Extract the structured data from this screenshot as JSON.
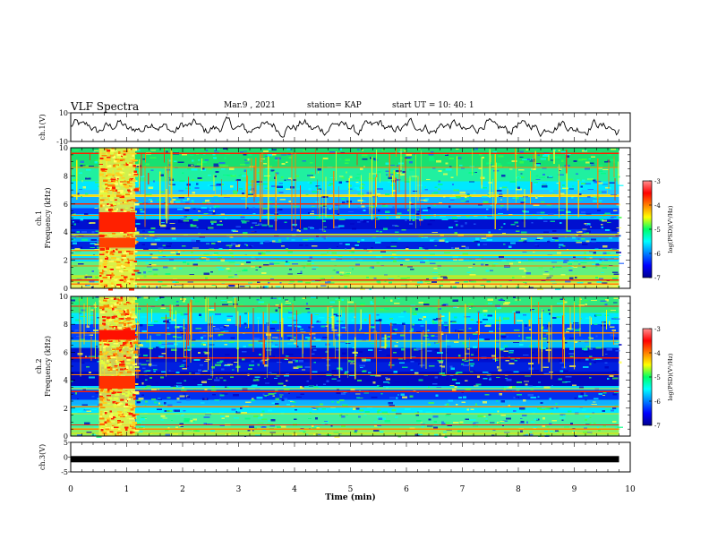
{
  "header": {
    "title": "VLF Spectra",
    "date": "Mar.9 , 2021",
    "station": "station= KAP",
    "start": "start UT = 10: 40: 1"
  },
  "chart_data": [
    {
      "type": "line",
      "panel": "ch1-waveform",
      "ylabel": "ch.1(V)",
      "ylim": [
        -10,
        10
      ],
      "yticks": [
        -10,
        10
      ],
      "xlim": [
        0,
        10
      ],
      "x_end": 9.8,
      "series": [
        {
          "points": 420,
          "amplitude": 4.5
        }
      ]
    },
    {
      "type": "heatmap",
      "panel": "ch1-spectrogram",
      "ylabel": "ch.1\nFrequency (kHz)",
      "ylim": [
        0,
        10
      ],
      "yticks": [
        0,
        2,
        4,
        6,
        8,
        10
      ],
      "xlim": [
        0,
        10
      ],
      "x_end": 9.8,
      "burst_interval": [
        0.5,
        1.15
      ],
      "colorbar": {
        "label": "log(PSD)(V²/Hz)",
        "range": [
          -7,
          -3
        ],
        "ticks": [
          -3,
          -4,
          -5,
          -6,
          -7
        ]
      }
    },
    {
      "type": "heatmap",
      "panel": "ch2-spectrogram",
      "ylabel": "ch.2\nFrequency (kHz)",
      "ylim": [
        0,
        10
      ],
      "yticks": [
        0,
        2,
        4,
        6,
        8,
        10
      ],
      "xlim": [
        0,
        10
      ],
      "x_end": 9.8,
      "burst_interval": [
        0.5,
        1.15
      ],
      "colorbar": {
        "label": "log(PSD)(V²/Hz)",
        "range": [
          -7,
          -3
        ],
        "ticks": [
          -3,
          -4,
          -5,
          -6,
          -7
        ]
      }
    },
    {
      "type": "line",
      "panel": "ch3-waveform",
      "ylabel": "ch.3(V)",
      "ylim": [
        -5,
        5
      ],
      "yticks": [
        -5,
        0,
        5
      ],
      "xlim": [
        0,
        10
      ],
      "x_end": 9.8,
      "series": [
        {
          "level": -0.7
        }
      ]
    }
  ],
  "xaxis": {
    "label": "Time (min)",
    "ticks": [
      0,
      1,
      2,
      3,
      4,
      5,
      6,
      7,
      8,
      9,
      10
    ]
  }
}
